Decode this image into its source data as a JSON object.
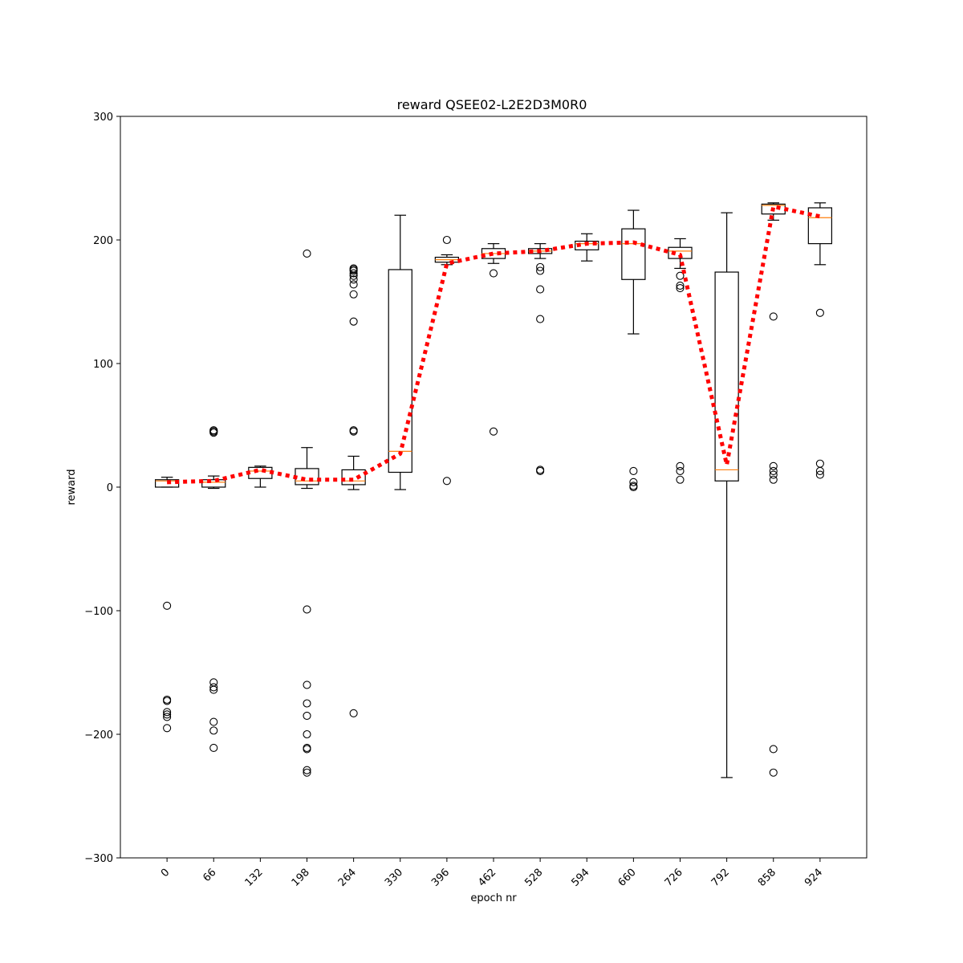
{
  "chart_data": {
    "type": "box",
    "title": "reward QSEE02-L2E2D3M0R0",
    "xlabel": "epoch nr",
    "ylabel": "reward",
    "ylim": [
      -300,
      300
    ],
    "yticks": [
      -300,
      -200,
      -100,
      0,
      100,
      200,
      300
    ],
    "ytick_labels": [
      "−300",
      "−200",
      "−100",
      "0",
      "100",
      "200",
      "300"
    ],
    "grid": false,
    "colors": {
      "box": "#000000",
      "median": "#ff7f0e",
      "mean_line": "#ff0000",
      "flier": "#000000"
    },
    "categories": [
      "0",
      "66",
      "132",
      "198",
      "264",
      "330",
      "396",
      "462",
      "528",
      "594",
      "660",
      "726",
      "792",
      "858",
      "924"
    ],
    "boxes": [
      {
        "whisker_low": 0,
        "q1": 0,
        "median": 5,
        "q3": 6,
        "whisker_high": 8,
        "fliers": [
          -96,
          -172,
          -173,
          -182,
          -184,
          -186,
          -195
        ]
      },
      {
        "whisker_low": -1,
        "q1": 0,
        "median": 4,
        "q3": 6,
        "whisker_high": 9,
        "fliers": [
          44,
          45,
          45,
          46,
          -158,
          -162,
          -164,
          -190,
          -197,
          -211
        ]
      },
      {
        "whisker_low": 0,
        "q1": 7,
        "median": 13,
        "q3": 16,
        "whisker_high": 17,
        "fliers": []
      },
      {
        "whisker_low": -1,
        "q1": 2,
        "median": 5,
        "q3": 15,
        "whisker_high": 32,
        "fliers": [
          189,
          -99,
          -160,
          -175,
          -185,
          -200,
          -211,
          -212,
          -229,
          -231
        ]
      },
      {
        "whisker_low": -2,
        "q1": 2,
        "median": 5,
        "q3": 14,
        "whisker_high": 25,
        "fliers": [
          45,
          46,
          134,
          156,
          164,
          168,
          171,
          173,
          175,
          176,
          177,
          -183
        ]
      },
      {
        "whisker_low": -2,
        "q1": 12,
        "median": 29,
        "q3": 176,
        "whisker_high": 220,
        "fliers": []
      },
      {
        "whisker_low": 180,
        "q1": 182,
        "median": 184,
        "q3": 186,
        "whisker_high": 188,
        "fliers": [
          200,
          5
        ]
      },
      {
        "whisker_low": 181,
        "q1": 185,
        "median": 189,
        "q3": 193,
        "whisker_high": 197,
        "fliers": [
          173,
          45
        ]
      },
      {
        "whisker_low": 185,
        "q1": 189,
        "median": 191,
        "q3": 193,
        "whisker_high": 197,
        "fliers": [
          178,
          175,
          160,
          136,
          14,
          13
        ]
      },
      {
        "whisker_low": 183,
        "q1": 192,
        "median": 197,
        "q3": 199,
        "whisker_high": 205,
        "fliers": []
      },
      {
        "whisker_low": 124,
        "q1": 168,
        "median": 197,
        "q3": 209,
        "whisker_high": 224,
        "fliers": [
          13,
          4,
          1,
          0
        ]
      },
      {
        "whisker_low": 177,
        "q1": 185,
        "median": 191,
        "q3": 194,
        "whisker_high": 201,
        "fliers": [
          171,
          163,
          161,
          17,
          13,
          6
        ]
      },
      {
        "whisker_low": -235,
        "q1": 5,
        "median": 14,
        "q3": 174,
        "whisker_high": 222,
        "fliers": []
      },
      {
        "whisker_low": 216,
        "q1": 221,
        "median": 228,
        "q3": 229,
        "whisker_high": 230,
        "fliers": [
          138,
          17,
          13,
          10,
          6,
          -212,
          -231
        ]
      },
      {
        "whisker_low": 180,
        "q1": 197,
        "median": 218,
        "q3": 226,
        "whisker_high": 230,
        "fliers": [
          141,
          19,
          13,
          10
        ]
      }
    ],
    "mean_series": {
      "values": [
        4,
        5,
        14,
        6,
        6,
        27,
        181,
        189,
        191,
        197,
        198,
        188,
        18,
        227,
        219
      ]
    }
  }
}
